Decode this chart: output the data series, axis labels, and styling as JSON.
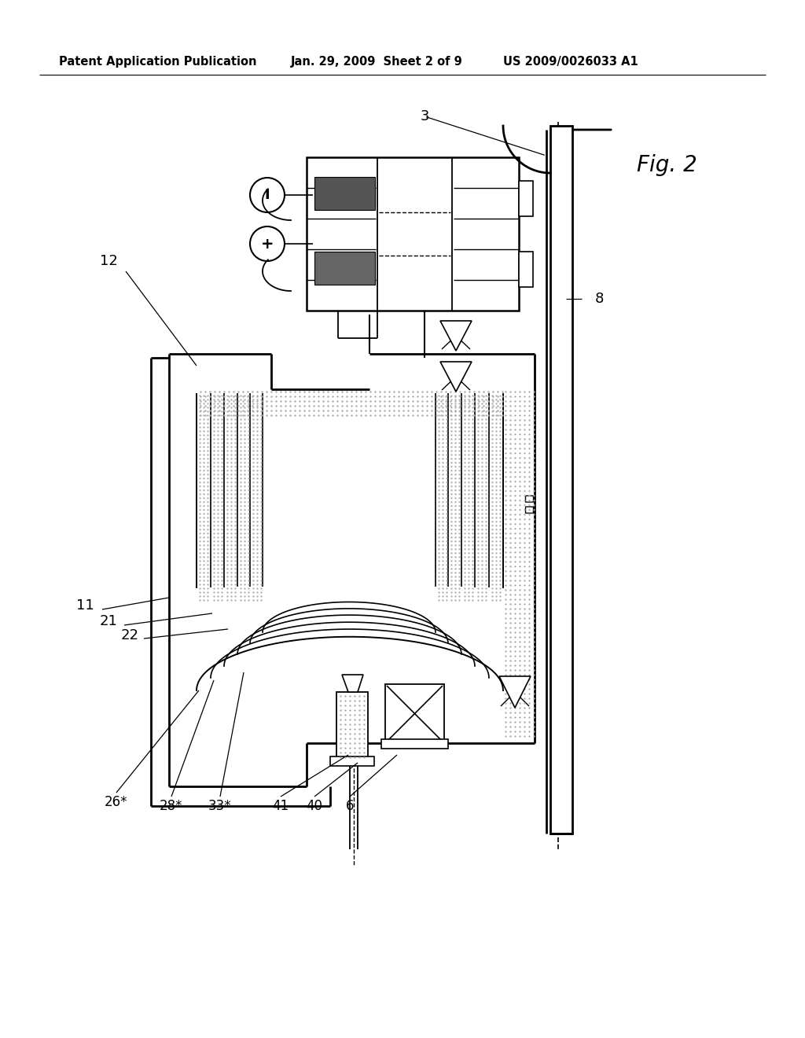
{
  "bg_color": "#ffffff",
  "header_text": "Patent Application Publication",
  "header_date": "Jan. 29, 2009  Sheet 2 of 9",
  "header_patent": "US 2009/0026033 A1",
  "fig_label": "Fig. 2",
  "line_color": "#000000",
  "stipple_color": "#c0c0c0"
}
